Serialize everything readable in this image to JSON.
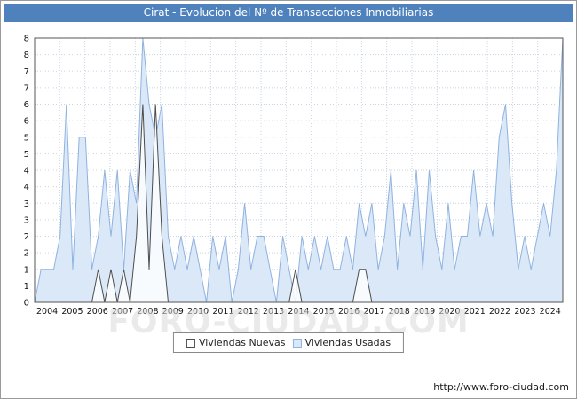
{
  "title": "Cirat - Evolucion del Nº de Transacciones Inmobiliarias",
  "watermark": "FORO-CIUDAD.COM",
  "url": "http://www.foro-ciudad.com",
  "legend": {
    "nuevas_label": "Viviendas Nuevas",
    "usadas_label": "Viviendas Usadas"
  },
  "colors": {
    "titlebar": "#4f81bd",
    "grid": "#c8d2e2",
    "plot_border": "#555555",
    "watermark": "#d9d9d9",
    "nuevas_fill": "#ffffff",
    "nuevas_stroke": "#4d4d4d",
    "usadas_fill": "#dbe8f8",
    "usadas_stroke": "#8fb2e0"
  },
  "chart_data": {
    "type": "area",
    "title": "Cirat - Evolucion del Nº de Transacciones Inmobiliarias",
    "xlabel": "",
    "ylabel": "",
    "years": [
      2004,
      2005,
      2006,
      2007,
      2008,
      2009,
      2010,
      2011,
      2012,
      2013,
      2014,
      2015,
      2016,
      2017,
      2018,
      2019,
      2020,
      2021,
      2022,
      2023,
      2024
    ],
    "points_per_year": 4,
    "ylim": [
      0,
      8
    ],
    "y_grid_step": 0.5,
    "y_tick_labels_bottom_to_top": [
      "0",
      "1",
      "1",
      "2",
      "2",
      "3",
      "3",
      "4",
      "4",
      "5",
      "5",
      "6",
      "6",
      "7",
      "7",
      "8",
      "8"
    ],
    "grid": true,
    "legend_position": "bottom",
    "series": [
      {
        "name": "Viviendas Nuevas",
        "fill": "#ffffff",
        "fill_opacity": 0.8,
        "stroke": "#4d4d4d",
        "values": [
          0,
          0,
          0,
          0,
          0,
          0,
          0,
          0,
          0,
          0,
          1,
          0,
          1,
          0,
          1,
          0,
          2,
          6,
          1,
          6,
          2,
          0,
          0,
          0,
          0,
          0,
          0,
          0,
          0,
          0,
          0,
          0,
          0,
          0,
          0,
          0,
          0,
          0,
          0,
          0,
          0,
          1,
          0,
          0,
          0,
          0,
          0,
          0,
          0,
          0,
          0,
          1,
          1,
          0,
          0,
          0,
          0,
          0,
          0,
          0,
          0,
          0,
          0,
          0,
          0,
          0,
          0,
          0,
          0,
          0,
          0,
          0,
          0,
          0,
          0,
          0,
          0,
          0,
          0,
          0,
          0,
          0,
          0,
          0
        ]
      },
      {
        "name": "Viviendas Usadas",
        "fill": "#dbe8f8",
        "fill_opacity": 1,
        "stroke": "#8fb2e0",
        "values": [
          0,
          1,
          1,
          1,
          2,
          6,
          1,
          5,
          5,
          1,
          2,
          4,
          2,
          4,
          1,
          4,
          3,
          8,
          6,
          5,
          6,
          2,
          1,
          2,
          1,
          2,
          1,
          0,
          2,
          1,
          2,
          0,
          1,
          3,
          1,
          2,
          2,
          1,
          0,
          2,
          1,
          0,
          2,
          1,
          2,
          1,
          2,
          1,
          1,
          2,
          1,
          3,
          2,
          3,
          1,
          2,
          4,
          1,
          3,
          2,
          4,
          1,
          4,
          2,
          1,
          3,
          1,
          2,
          2,
          4,
          2,
          3,
          2,
          5,
          6,
          3,
          1,
          2,
          1,
          2,
          3,
          2,
          4,
          8
        ]
      }
    ]
  }
}
